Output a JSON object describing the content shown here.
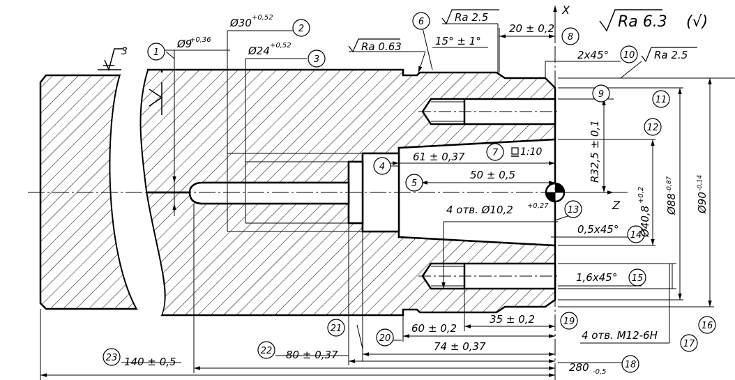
{
  "drawing": {
    "roughness_global": "Ra 6.3",
    "roughness_global_mark": "(√)",
    "balloons": [
      "1",
      "2",
      "3",
      "4",
      "5",
      "6",
      "7",
      "8",
      "9",
      "10",
      "11",
      "12",
      "13",
      "14",
      "15",
      "16",
      "17",
      "18",
      "19",
      "20",
      "21",
      "22",
      "23"
    ],
    "axis_x": "X",
    "axis_z": "Z",
    "datum_label": "3",
    "dims": {
      "d9": "Ø9",
      "d9_tol": "+0,36",
      "d30": "Ø30",
      "d30_tol": "+0,52",
      "d24": "Ø24",
      "d24_tol": "+0,52",
      "ra063": "Ra 0.63",
      "ra25_top": "Ra 2.5",
      "ra25_right": "Ra 2.5",
      "angle15": "15° ± 1°",
      "len20": "20 ± 0,2",
      "chamfer2x45": "2x45°",
      "len61": "61 ± 0,37",
      "taper": "1:10",
      "len50": "50 ± 0,5",
      "holes_d10": "4 отв. Ø10,2",
      "holes_d10_tol": "+0,27",
      "chamfer05": "0,5x45°",
      "chamfer16": "1,6x45°",
      "r325": "R32,5 ± 0,1",
      "d408": "Ø40,8",
      "d408_tol": "+0,2",
      "d88": "Ø88",
      "d88_tol": "-0,87",
      "d90": "Ø90",
      "d90_tol": "-0,14",
      "len35": "35 ± 0,2",
      "len60": "60 ± 0,2",
      "len74": "74 ± 0,37",
      "len80": "80 ± 0,37",
      "len140": "140 ± 0,5",
      "len280": "280",
      "len280_tol": "-0,5",
      "threads": "4 отв. M12-6H"
    }
  }
}
